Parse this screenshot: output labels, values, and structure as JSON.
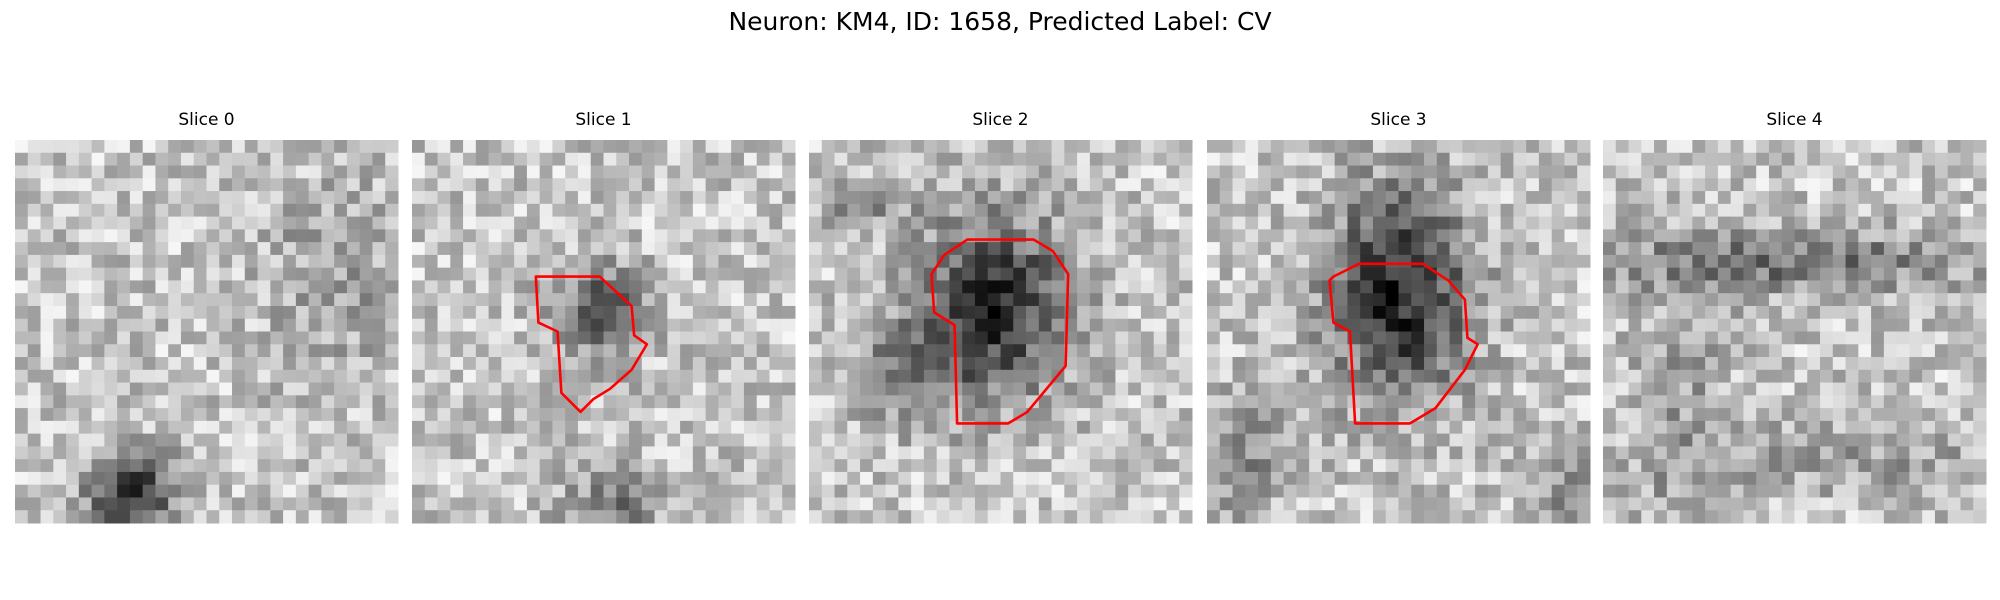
{
  "title": "Neuron: KM4, ID: 1658, Predicted Label: CV",
  "panels": [
    {
      "title": "Slice 0"
    },
    {
      "title": "Slice 1"
    },
    {
      "title": "Slice 2"
    },
    {
      "title": "Slice 3"
    },
    {
      "title": "Slice 4"
    }
  ]
}
